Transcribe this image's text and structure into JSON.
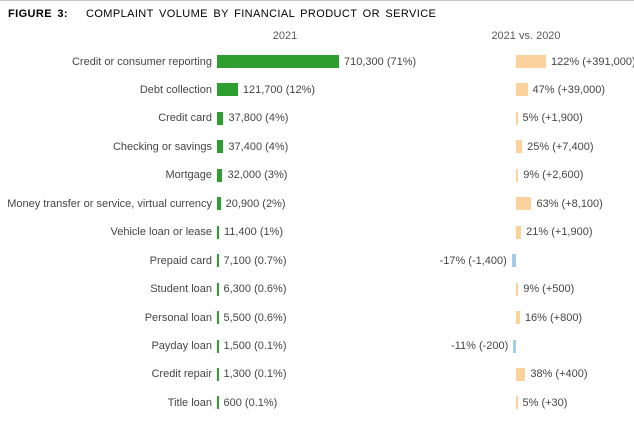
{
  "figure": {
    "label": "FIGURE 3:",
    "title": "COMPLAINT VOLUME BY FINANCIAL PRODUCT OR SERVICE"
  },
  "chart_data": {
    "type": "bar",
    "orientation": "horizontal",
    "title": "COMPLAINT VOLUME BY FINANCIAL PRODUCT OR SERVICE",
    "column_headers": [
      "2021",
      "2021 vs. 2020"
    ],
    "categories": [
      "Credit or consumer reporting",
      "Debt collection",
      "Credit card",
      "Checking or savings",
      "Mortgage",
      "Money transfer or service, virtual currency",
      "Vehicle loan or lease",
      "Prepaid card",
      "Student loan",
      "Personal loan",
      "Payday loan",
      "Credit repair",
      "Title loan"
    ],
    "series": [
      {
        "name": "2021",
        "values": [
          710300,
          121700,
          37800,
          37400,
          32000,
          20900,
          11400,
          7100,
          6300,
          5500,
          1500,
          1300,
          600
        ],
        "labels": [
          "710,300 (71%)",
          "121,700 (12%)",
          "37,800 (4%)",
          "37,400 (4%)",
          "32,000 (3%)",
          "20,900 (2%)",
          "11,400 (1%)",
          "7,100 (0.7%)",
          "6,300 (0.6%)",
          "5,500 (0.6%)",
          "1,500 (0.1%)",
          "1,300 (0.1%)",
          "600 (0.1%)"
        ]
      },
      {
        "name": "2021 vs. 2020",
        "values": [
          122,
          47,
          5,
          25,
          9,
          63,
          21,
          -17,
          9,
          16,
          -11,
          38,
          5
        ],
        "labels": [
          "122% (+391,000)",
          "47% (+39,000)",
          "5% (+1,900)",
          "25% (+7,400)",
          "9% (+2,600)",
          "63% (+8,100)",
          "21% (+1,900)",
          "-17% (-1,400)",
          "9% (+500)",
          "16% (+800)",
          "-11% (-200)",
          "38% (+400)",
          "5% (+30)"
        ]
      }
    ],
    "axis": {
      "left_axis_max_value": 710300,
      "right_axis_max_pct": 122,
      "grid": false,
      "legend": false
    },
    "colors": {
      "volume_bar": "#2f9e31",
      "increase_bar": "#fbd29b",
      "decrease_bar": "#a3cce9",
      "label_text": "#464646",
      "header_text": "#5a5a5a",
      "title_text": "#000000"
    }
  }
}
